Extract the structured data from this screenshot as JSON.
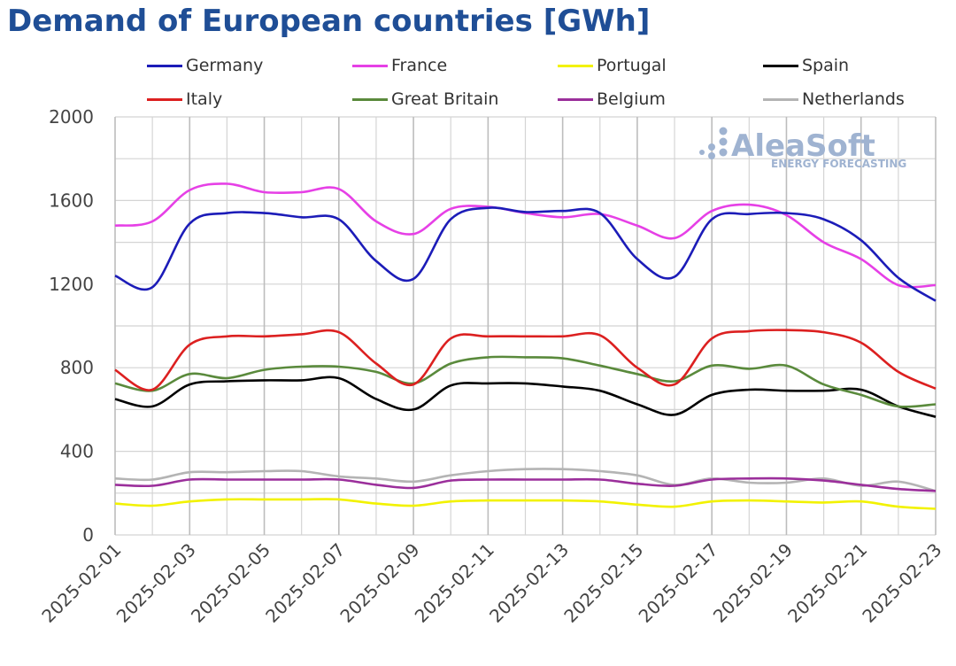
{
  "chart_data": {
    "type": "line",
    "title": "Demand of European countries [GWh]",
    "ylim": [
      0,
      2000
    ],
    "yticks": [
      0,
      400,
      800,
      1200,
      1600,
      2000
    ],
    "x": [
      "2025-02-01",
      "2025-02-02",
      "2025-02-03",
      "2025-02-04",
      "2025-02-05",
      "2025-02-06",
      "2025-02-07",
      "2025-02-08",
      "2025-02-09",
      "2025-02-10",
      "2025-02-11",
      "2025-02-12",
      "2025-02-13",
      "2025-02-14",
      "2025-02-15",
      "2025-02-16",
      "2025-02-17",
      "2025-02-18",
      "2025-02-19",
      "2025-02-20",
      "2025-02-21",
      "2025-02-22",
      "2025-02-23"
    ],
    "xtick_labels": [
      "2025-02-01",
      "2025-02-03",
      "2025-02-05",
      "2025-02-07",
      "2025-02-09",
      "2025-02-11",
      "2025-02-13",
      "2025-02-15",
      "2025-02-17",
      "2025-02-19",
      "2025-02-21",
      "2025-02-23"
    ],
    "grid": true,
    "legend_position": "top",
    "series": [
      {
        "name": "Germany",
        "color": "#1c1cb8",
        "values": [
          1240,
          1185,
          1490,
          1540,
          1540,
          1520,
          1510,
          1310,
          1225,
          1510,
          1565,
          1545,
          1550,
          1540,
          1320,
          1235,
          1510,
          1535,
          1540,
          1510,
          1410,
          1230,
          1120
        ]
      },
      {
        "name": "France",
        "color": "#e640e6",
        "values": [
          1480,
          1500,
          1650,
          1680,
          1640,
          1640,
          1655,
          1500,
          1440,
          1560,
          1570,
          1540,
          1520,
          1535,
          1480,
          1420,
          1550,
          1580,
          1530,
          1400,
          1320,
          1195,
          1195
        ]
      },
      {
        "name": "Portugal",
        "color": "#f2f200",
        "values": [
          150,
          140,
          160,
          170,
          170,
          170,
          170,
          150,
          140,
          160,
          165,
          165,
          165,
          160,
          145,
          135,
          160,
          165,
          160,
          155,
          160,
          135,
          125
        ]
      },
      {
        "name": "Spain",
        "color": "#000000",
        "values": [
          650,
          615,
          720,
          735,
          740,
          740,
          750,
          650,
          600,
          715,
          725,
          725,
          710,
          690,
          625,
          575,
          670,
          695,
          690,
          690,
          695,
          615,
          565
        ]
      },
      {
        "name": "Italy",
        "color": "#dc2020",
        "values": [
          790,
          695,
          910,
          950,
          950,
          960,
          970,
          820,
          720,
          940,
          950,
          950,
          950,
          955,
          800,
          720,
          940,
          975,
          980,
          970,
          920,
          780,
          700
        ]
      },
      {
        "name": "Great Britain",
        "color": "#5a8a3c",
        "values": [
          725,
          690,
          770,
          750,
          790,
          805,
          805,
          780,
          725,
          820,
          850,
          850,
          845,
          810,
          770,
          735,
          810,
          795,
          810,
          720,
          670,
          615,
          625
        ]
      },
      {
        "name": "Belgium",
        "color": "#9b2f9b",
        "values": [
          240,
          235,
          265,
          265,
          265,
          265,
          265,
          240,
          225,
          260,
          265,
          265,
          265,
          265,
          245,
          235,
          265,
          270,
          270,
          260,
          240,
          220,
          210
        ]
      },
      {
        "name": "Netherlands",
        "color": "#b4b4b4",
        "values": [
          270,
          265,
          300,
          300,
          305,
          305,
          280,
          270,
          255,
          285,
          305,
          315,
          315,
          305,
          285,
          240,
          270,
          250,
          250,
          270,
          235,
          255,
          210
        ]
      }
    ]
  },
  "watermark": {
    "brand": "AleaSoft",
    "tagline": "ENERGY FORECASTING"
  }
}
